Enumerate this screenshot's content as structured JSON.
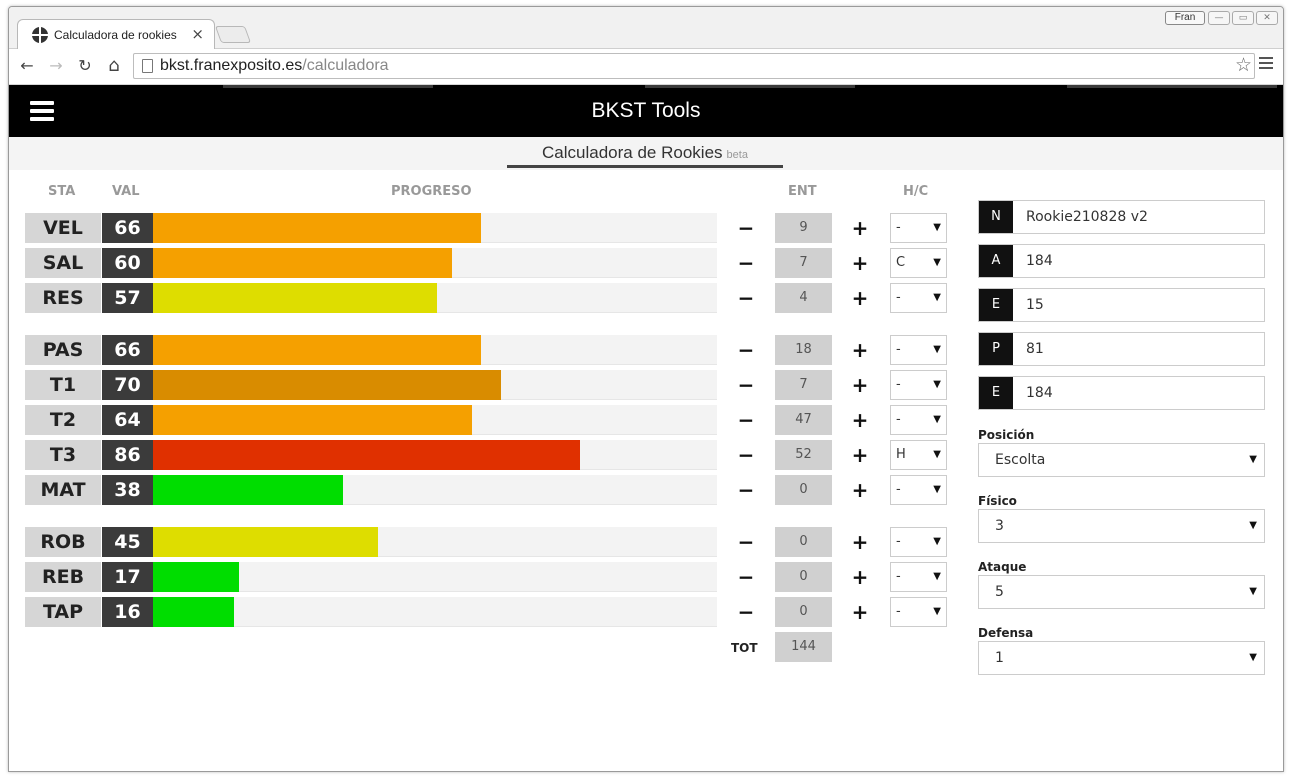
{
  "browser": {
    "tab_title": "Calculadora de rookies",
    "tab_close": "×",
    "user": "Fran",
    "url_host": "bkst.franexposito.es",
    "url_path": "/calculadora",
    "back": "←",
    "forward": "→",
    "reload": "↻",
    "home": "⌂",
    "star": "☆"
  },
  "app": {
    "title": "BKST Tools",
    "subtitle": "Calculadora de Rookies",
    "subtitle_tag": "beta"
  },
  "columns": {
    "sta": "STA",
    "val": "VAL",
    "progreso": "PROGRESO",
    "ent": "ENT",
    "hc": "H/C"
  },
  "controls": {
    "minus": "−",
    "plus": "+",
    "arrow": "▼"
  },
  "colors": {
    "orange": "#f5a000",
    "dark_orange": "#d98c00",
    "yellow": "#dedd00",
    "red": "#e03000",
    "green": "#00dd00"
  },
  "stats": [
    {
      "name": "VEL",
      "value": "66",
      "progress": 66,
      "color": "#f5a000",
      "ent": "9",
      "hc": "-"
    },
    {
      "name": "SAL",
      "value": "60",
      "progress": 60,
      "color": "#f5a000",
      "ent": "7",
      "hc": "C"
    },
    {
      "name": "RES",
      "value": "57",
      "progress": 57,
      "color": "#dedd00",
      "ent": "4",
      "hc": "-"
    },
    {
      "name": "PAS",
      "value": "66",
      "progress": 66,
      "color": "#f5a000",
      "ent": "18",
      "hc": "-"
    },
    {
      "name": "T1",
      "value": "70",
      "progress": 70,
      "color": "#d98c00",
      "ent": "7",
      "hc": "-"
    },
    {
      "name": "T2",
      "value": "64",
      "progress": 64,
      "color": "#f5a000",
      "ent": "47",
      "hc": "-"
    },
    {
      "name": "T3",
      "value": "86",
      "progress": 86,
      "color": "#e03000",
      "ent": "52",
      "hc": "H"
    },
    {
      "name": "MAT",
      "value": "38",
      "progress": 38,
      "color": "#00dd00",
      "ent": "0",
      "hc": "-"
    },
    {
      "name": "ROB",
      "value": "45",
      "progress": 45,
      "color": "#dedd00",
      "ent": "0",
      "hc": "-"
    },
    {
      "name": "REB",
      "value": "17",
      "progress": 17,
      "color": "#00dd00",
      "ent": "0",
      "hc": "-"
    },
    {
      "name": "TAP",
      "value": "16",
      "progress": 16,
      "color": "#00dd00",
      "ent": "0",
      "hc": "-"
    }
  ],
  "total": {
    "label": "TOT",
    "value": "144"
  },
  "fields": [
    {
      "key": "N",
      "value": "Rookie210828 v2"
    },
    {
      "key": "A",
      "value": "184"
    },
    {
      "key": "E",
      "value": "15"
    },
    {
      "key": "P",
      "value": "81"
    },
    {
      "key": "E",
      "value": "184"
    }
  ],
  "selects": [
    {
      "label": "Posición",
      "value": "Escolta"
    },
    {
      "label": "Físico",
      "value": "3"
    },
    {
      "label": "Ataque",
      "value": "5"
    },
    {
      "label": "Defensa",
      "value": "1"
    }
  ]
}
